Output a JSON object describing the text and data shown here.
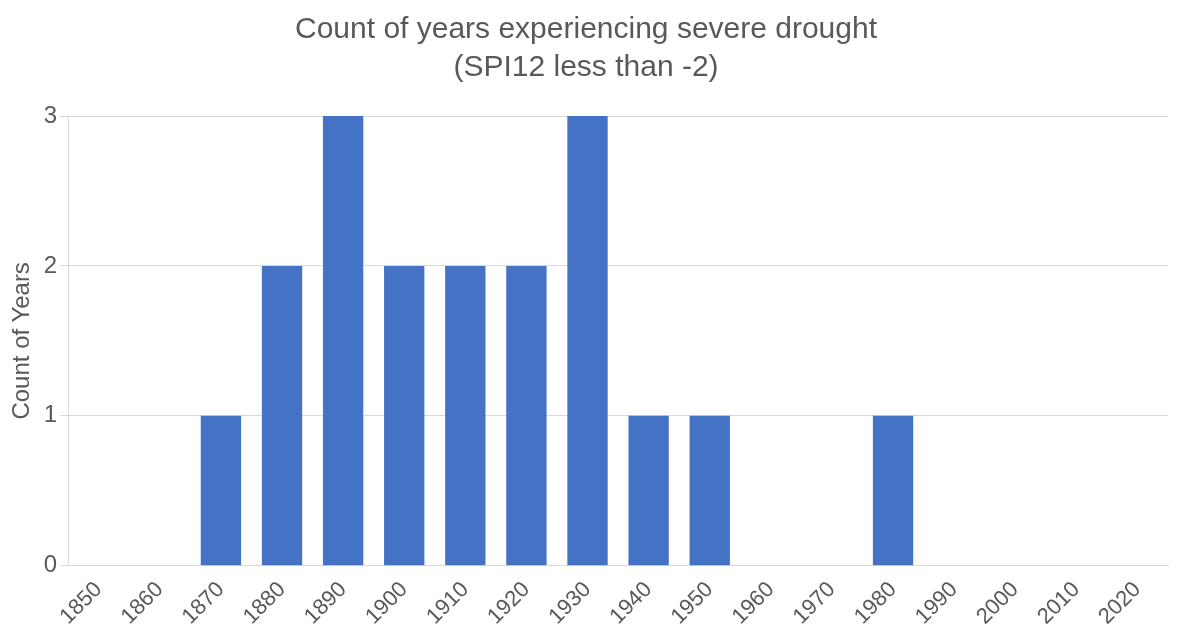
{
  "chart_data": {
    "type": "bar",
    "title": "Count of years experiencing severe drought",
    "subtitle": "(SPI12 less than -2)",
    "ylabel": "Count of Years",
    "categories": [
      "1850",
      "1860",
      "1870",
      "1880",
      "1890",
      "1900",
      "1910",
      "1920",
      "1930",
      "1940",
      "1950",
      "1960",
      "1970",
      "1980",
      "1990",
      "2000",
      "2010",
      "2020"
    ],
    "values": [
      0,
      0,
      1,
      2,
      3,
      2,
      2,
      2,
      3,
      1,
      1,
      0,
      0,
      1,
      0,
      0,
      0,
      0
    ],
    "color": "#4472c4",
    "ylim": [
      0,
      3
    ],
    "yticks": [
      0,
      1,
      2,
      3
    ],
    "grid": "y"
  }
}
